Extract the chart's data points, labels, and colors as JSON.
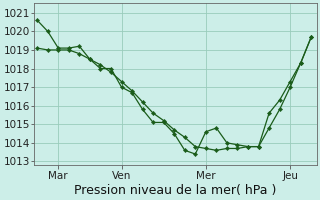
{
  "background_color": "#cceee8",
  "grid_color": "#99ccbb",
  "line_color": "#1a5c1a",
  "marker_color": "#1a5c1a",
  "line1_x": [
    0,
    1,
    2,
    3,
    4,
    5,
    6,
    7,
    8,
    9,
    10,
    11,
    12,
    13,
    14,
    15,
    16,
    17,
    18,
    19,
    20,
    21,
    22,
    23,
    24,
    25,
    26
  ],
  "line1_y": [
    1020.6,
    1020.0,
    1019.1,
    1019.1,
    1019.2,
    1018.5,
    1018.0,
    1018.0,
    1017.0,
    1016.7,
    1015.8,
    1015.1,
    1015.1,
    1014.5,
    1013.6,
    1013.4,
    1014.6,
    1014.8,
    1014.0,
    1013.9,
    1013.8,
    1013.8,
    1015.6,
    1016.3,
    1017.3,
    1018.3,
    1019.7
  ],
  "line2_x": [
    0,
    1,
    2,
    3,
    4,
    5,
    6,
    7,
    8,
    9,
    10,
    11,
    12,
    13,
    14,
    15,
    16,
    17,
    18,
    19,
    20,
    21,
    22,
    23,
    24,
    25,
    26
  ],
  "line2_y": [
    1019.1,
    1019.0,
    1019.0,
    1019.0,
    1018.8,
    1018.5,
    1018.2,
    1017.8,
    1017.3,
    1016.8,
    1016.2,
    1015.6,
    1015.2,
    1014.7,
    1014.3,
    1013.8,
    1013.7,
    1013.6,
    1013.7,
    1013.7,
    1013.8,
    1013.8,
    1014.8,
    1015.8,
    1017.0,
    1018.3,
    1019.7
  ],
  "xtick_positions": [
    2,
    8,
    16,
    24
  ],
  "xtick_labels": [
    "Mar",
    "Ven",
    "Mer",
    "Jeu"
  ],
  "ylim": [
    1012.8,
    1021.5
  ],
  "ytick_values": [
    1013,
    1014,
    1015,
    1016,
    1017,
    1018,
    1019,
    1020,
    1021
  ],
  "xlabel": "Pression niveau de la mer( hPa )",
  "xlabel_fontsize": 9,
  "tick_fontsize": 7.5
}
